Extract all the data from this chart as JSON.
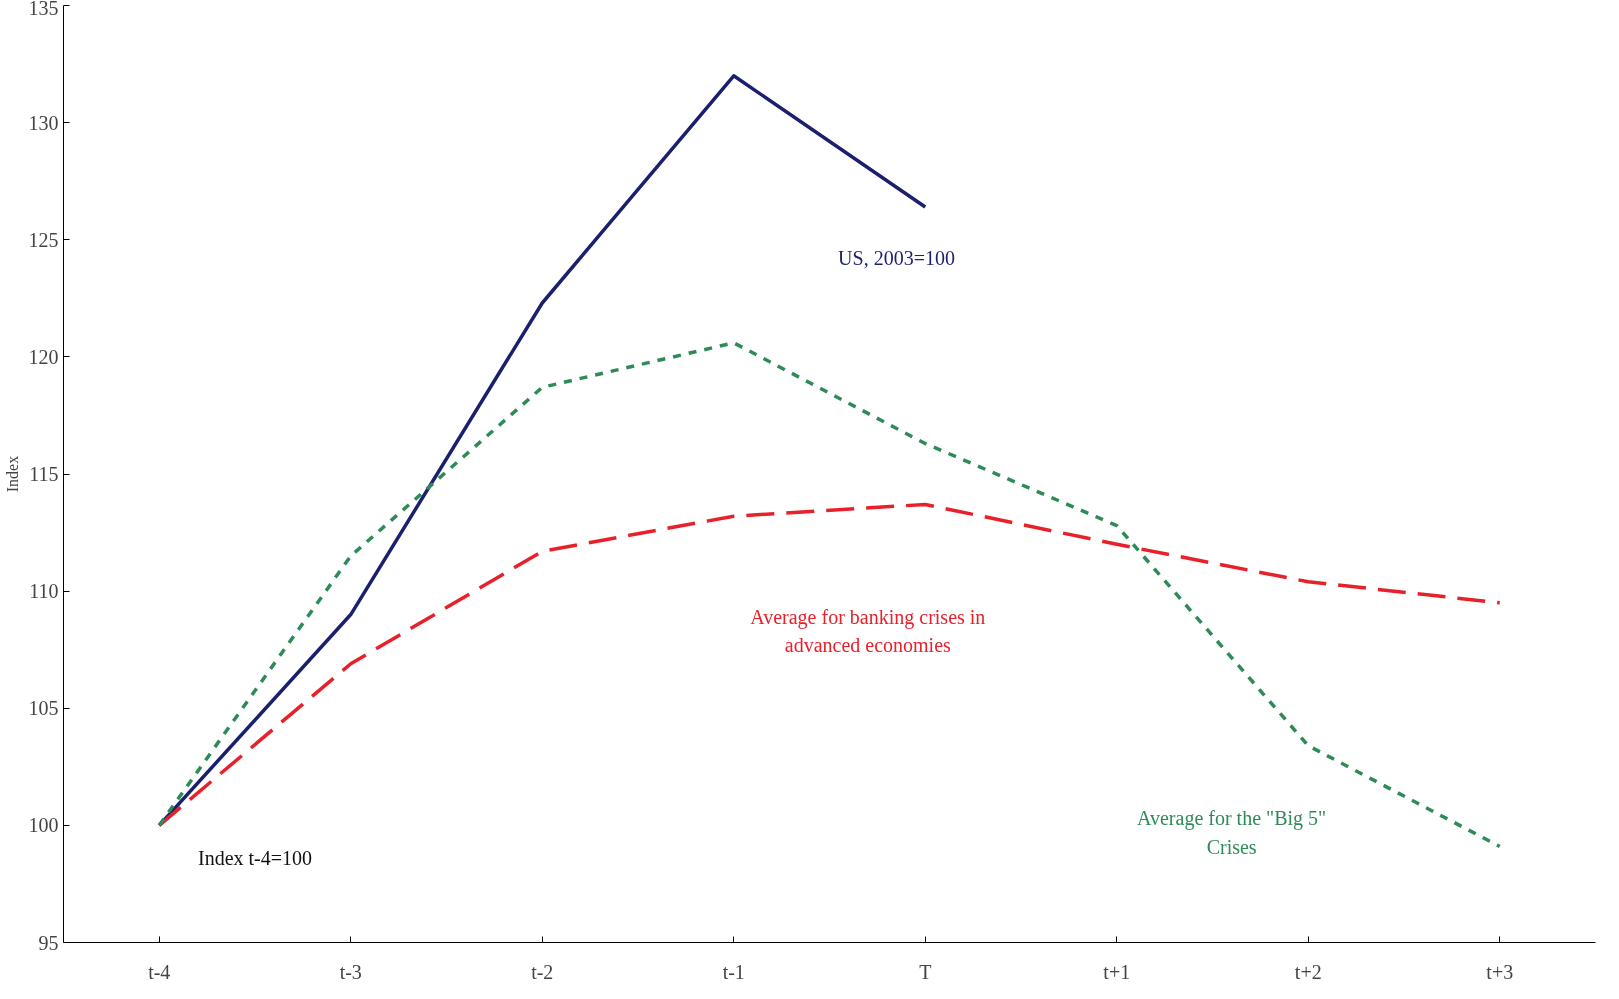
{
  "chart_data": {
    "type": "line",
    "ylabel": "Index",
    "categories": [
      "t-4",
      "t-3",
      "t-2",
      "t-1",
      "T",
      "t+1",
      "t+2",
      "t+3"
    ],
    "series": [
      {
        "name": "US, 2003=100",
        "color": "#1a1f6e",
        "line_style": "solid",
        "values": [
          100,
          109.0,
          122.3,
          132.0,
          126.4,
          null,
          null,
          null
        ]
      },
      {
        "name": "Average for banking crises in advanced economies",
        "color": "#e8202a",
        "line_style": "dashed",
        "values": [
          100,
          106.9,
          111.7,
          113.2,
          113.7,
          112.0,
          110.4,
          109.5
        ]
      },
      {
        "name": "Average for the \"Big 5\" Crises",
        "color": "#2e8b57",
        "line_style": "dotted",
        "values": [
          100,
          111.5,
          118.7,
          120.6,
          116.3,
          112.8,
          103.4,
          99.1
        ]
      }
    ],
    "annotations": [
      "Index t-4=100"
    ],
    "ylim": [
      95,
      135
    ],
    "yticks": [
      95,
      100,
      105,
      110,
      115,
      120,
      125,
      130,
      135
    ],
    "grid": false,
    "legend": false,
    "marker": "none"
  }
}
